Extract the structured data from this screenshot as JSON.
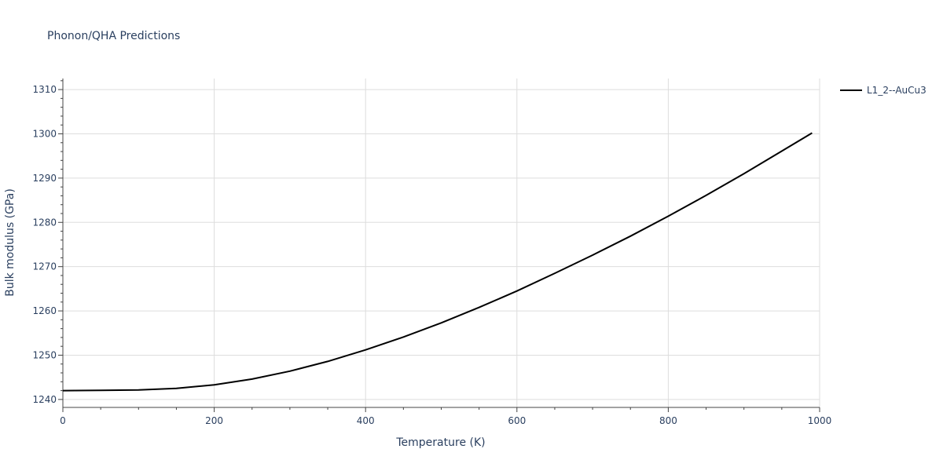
{
  "chart_data": {
    "type": "line",
    "title": "Phonon/QHA Predictions",
    "xlabel": "Temperature (K)",
    "ylabel": "Bulk modulus (GPa)",
    "xlim": [
      0,
      1000
    ],
    "ylim": [
      1238.2,
      1312.5
    ],
    "xticks": [
      0,
      200,
      400,
      600,
      800,
      1000
    ],
    "xtick_labels": [
      "0",
      "200",
      "400",
      "600",
      "800",
      "1000"
    ],
    "xminor_step": 50,
    "yticks": [
      1240,
      1250,
      1260,
      1270,
      1280,
      1290,
      1300,
      1310
    ],
    "ytick_labels": [
      "1240",
      "1250",
      "1260",
      "1270",
      "1280",
      "1290",
      "1300",
      "1310"
    ],
    "yminor_step": 2,
    "grid": true,
    "legend_position": "top-right",
    "colors": {
      "series": "#000000",
      "text": "#2a3f5f",
      "grid": "#dddddd",
      "axis": "#444444"
    },
    "series": [
      {
        "name": "L1_2--AuCu3",
        "x": [
          0,
          50,
          100,
          150,
          200,
          250,
          300,
          350,
          400,
          450,
          500,
          550,
          600,
          650,
          700,
          750,
          800,
          850,
          900,
          950,
          990
        ],
        "y": [
          1242.0,
          1242.05,
          1242.15,
          1242.5,
          1243.3,
          1244.6,
          1246.4,
          1248.6,
          1251.2,
          1254.1,
          1257.3,
          1260.8,
          1264.5,
          1268.5,
          1272.6,
          1276.9,
          1281.4,
          1286.1,
          1291.0,
          1296.1,
          1300.2
        ]
      }
    ]
  }
}
